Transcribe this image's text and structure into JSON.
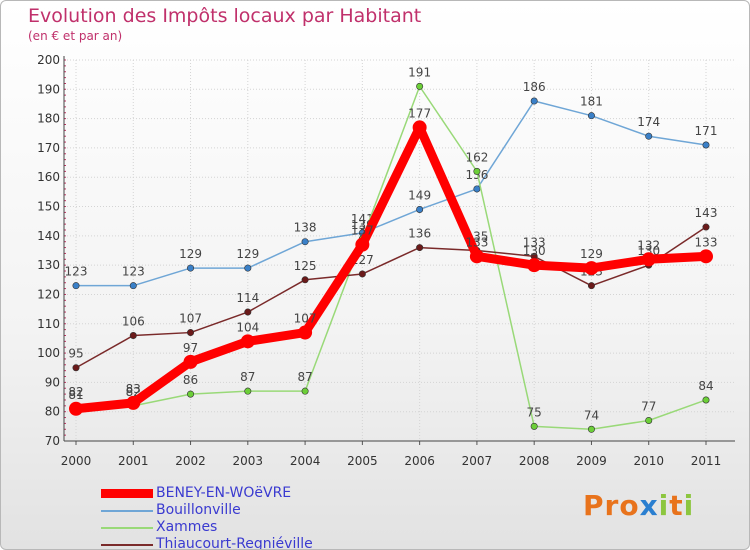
{
  "title": "Evolution des Impôts locaux par Habitant",
  "subtitle": "(en € et par an)",
  "brand": {
    "text": "Proxiti",
    "letters": [
      "P",
      "r",
      "o",
      "x",
      "i",
      "t",
      "i"
    ],
    "colors": [
      "#e8731c",
      "#e8731c",
      "#e8731c",
      "#2a7fd0",
      "#8cc63f",
      "#e8731c",
      "#8cc63f"
    ]
  },
  "chart_data": {
    "type": "line",
    "title": "Evolution des Impôts locaux par Habitant",
    "subtitle": "(en € et par an)",
    "xlabel": "",
    "ylabel": "",
    "categories": [
      "2000",
      "2001",
      "2002",
      "2003",
      "2004",
      "2005",
      "2006",
      "2007",
      "2008",
      "2009",
      "2010",
      "2011"
    ],
    "y_ticks": [
      70,
      80,
      90,
      100,
      110,
      120,
      130,
      140,
      150,
      160,
      170,
      180,
      190,
      200
    ],
    "ylim": [
      70,
      200
    ],
    "grid": true,
    "legend_position": "bottom-left",
    "series": [
      {
        "name": "BENEY-EN-WOëVRE",
        "color": "#ff0000",
        "emphasis": true,
        "values": [
          81,
          83,
          97,
          104,
          107,
          137,
          177,
          133,
          130,
          129,
          132,
          133
        ]
      },
      {
        "name": "Bouillonville",
        "color": "#6fa6d6",
        "dot": "#3a80c8",
        "emphasis": false,
        "values": [
          123,
          123,
          129,
          129,
          138,
          141,
          149,
          156,
          186,
          181,
          174,
          171
        ]
      },
      {
        "name": "Xammes",
        "color": "#99d978",
        "dot": "#6ccf38",
        "emphasis": false,
        "values": [
          82,
          82,
          86,
          87,
          87,
          139,
          191,
          162,
          75,
          74,
          77,
          84
        ]
      },
      {
        "name": "Thiaucourt-Regniéville",
        "color": "#7a2a2a",
        "dot": "#6b1a1a",
        "emphasis": false,
        "values": [
          95,
          106,
          107,
          114,
          125,
          127,
          136,
          135,
          133,
          123,
          130,
          143
        ]
      }
    ]
  }
}
